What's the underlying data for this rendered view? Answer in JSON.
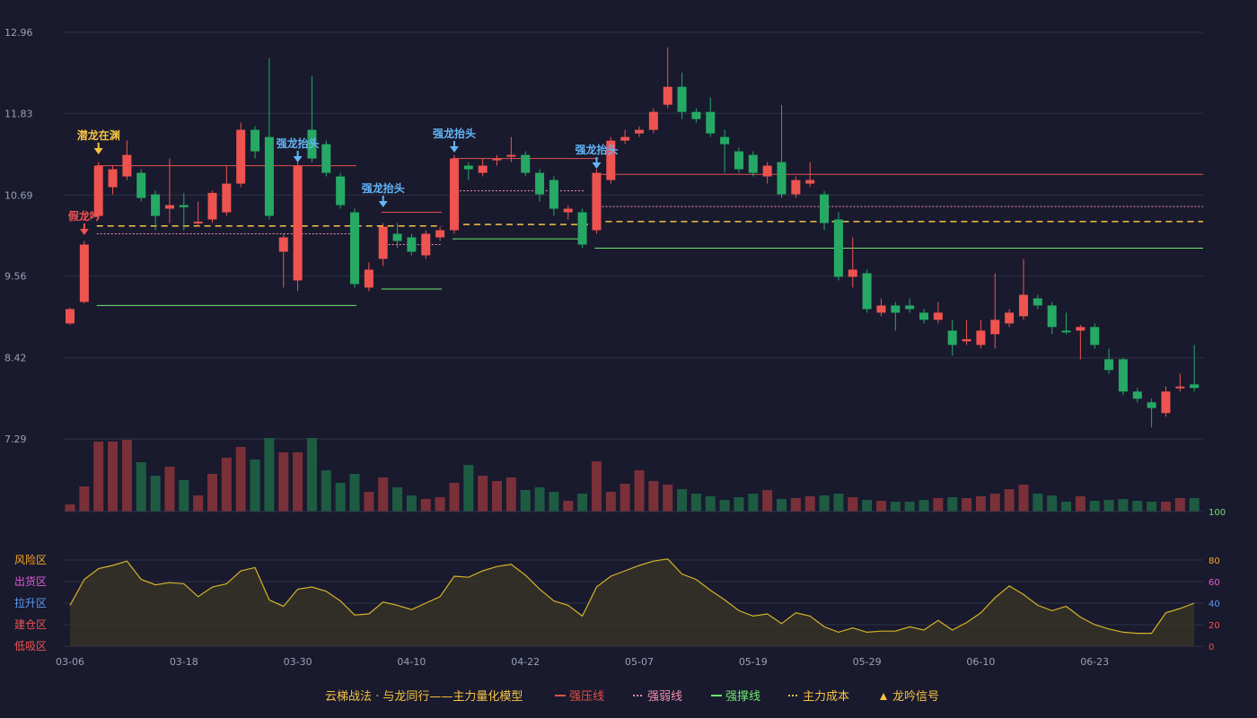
{
  "chart_data": {
    "type": "candlestick",
    "price_axis": {
      "ticks": [
        "12.96",
        "11.83",
        "10.69",
        "9.56",
        "8.42",
        "7.29"
      ],
      "range": [
        7.29,
        12.96
      ]
    },
    "date_ticks": [
      {
        "i": 0,
        "label": "03-06"
      },
      {
        "i": 8,
        "label": "03-18"
      },
      {
        "i": 16,
        "label": "03-30"
      },
      {
        "i": 24,
        "label": "04-10"
      },
      {
        "i": 32,
        "label": "04-22"
      },
      {
        "i": 40,
        "label": "05-07"
      },
      {
        "i": 48,
        "label": "05-19"
      },
      {
        "i": 56,
        "label": "05-29"
      },
      {
        "i": 64,
        "label": "06-10"
      },
      {
        "i": 72,
        "label": "06-23"
      }
    ],
    "candles": [
      [
        8.9,
        9.1,
        9.12,
        8.88
      ],
      [
        9.2,
        10.0,
        10.05,
        9.18
      ],
      [
        10.4,
        11.1,
        11.15,
        10.35
      ],
      [
        10.8,
        11.05,
        11.1,
        10.7
      ],
      [
        10.95,
        11.25,
        11.45,
        10.9
      ],
      [
        11.0,
        10.65,
        11.05,
        10.6
      ],
      [
        10.7,
        10.4,
        10.75,
        10.2
      ],
      [
        10.5,
        10.55,
        11.2,
        10.3
      ],
      [
        10.55,
        10.52,
        10.72,
        10.2
      ],
      [
        10.3,
        10.32,
        10.6,
        10.25
      ],
      [
        10.35,
        10.72,
        10.75,
        10.3
      ],
      [
        10.45,
        10.85,
        11.1,
        10.4
      ],
      [
        10.85,
        11.6,
        11.7,
        10.8
      ],
      [
        11.6,
        11.3,
        11.65,
        11.2
      ],
      [
        11.5,
        10.4,
        12.6,
        10.35
      ],
      [
        9.9,
        10.1,
        10.15,
        9.4
      ],
      [
        9.5,
        11.1,
        11.15,
        9.35
      ],
      [
        11.6,
        11.2,
        12.35,
        11.15
      ],
      [
        11.4,
        11.0,
        11.45,
        10.95
      ],
      [
        10.95,
        10.55,
        11.0,
        10.5
      ],
      [
        10.45,
        9.45,
        10.5,
        9.4
      ],
      [
        9.4,
        9.65,
        9.75,
        9.35
      ],
      [
        9.8,
        10.25,
        10.3,
        9.7
      ],
      [
        10.15,
        10.05,
        10.3,
        9.95
      ],
      [
        10.1,
        9.9,
        10.15,
        9.85
      ],
      [
        9.85,
        10.15,
        10.2,
        9.8
      ],
      [
        10.1,
        10.2,
        10.25,
        10.05
      ],
      [
        10.2,
        11.2,
        11.25,
        10.15
      ],
      [
        11.1,
        11.05,
        11.15,
        10.9
      ],
      [
        11.0,
        11.1,
        11.2,
        10.95
      ],
      [
        11.2,
        11.2,
        11.25,
        11.1
      ],
      [
        11.25,
        11.25,
        11.5,
        11.15
      ],
      [
        11.25,
        11.0,
        11.3,
        10.95
      ],
      [
        11.0,
        10.7,
        11.05,
        10.6
      ],
      [
        10.9,
        10.5,
        10.95,
        10.4
      ],
      [
        10.45,
        10.5,
        10.55,
        10.35
      ],
      [
        10.45,
        10.0,
        10.5,
        9.95
      ],
      [
        10.2,
        11.0,
        11.05,
        10.15
      ],
      [
        10.9,
        11.45,
        11.5,
        10.85
      ],
      [
        11.45,
        11.5,
        11.6,
        11.4
      ],
      [
        11.55,
        11.6,
        11.65,
        11.5
      ],
      [
        11.6,
        11.85,
        11.9,
        11.55
      ],
      [
        11.95,
        12.2,
        12.75,
        11.9
      ],
      [
        12.2,
        11.85,
        12.4,
        11.75
      ],
      [
        11.85,
        11.75,
        11.9,
        11.7
      ],
      [
        11.85,
        11.55,
        12.05,
        11.5
      ],
      [
        11.5,
        11.4,
        11.6,
        11.0
      ],
      [
        11.3,
        11.05,
        11.35,
        11.0
      ],
      [
        11.25,
        11.0,
        11.3,
        10.95
      ],
      [
        10.95,
        11.1,
        11.15,
        10.85
      ],
      [
        11.15,
        10.7,
        11.95,
        10.65
      ],
      [
        10.7,
        10.9,
        10.95,
        10.65
      ],
      [
        10.85,
        10.9,
        11.15,
        10.8
      ],
      [
        10.7,
        10.3,
        10.75,
        10.2
      ],
      [
        10.35,
        9.55,
        10.45,
        9.5
      ],
      [
        9.55,
        9.65,
        10.1,
        9.4
      ],
      [
        9.6,
        9.1,
        9.65,
        9.05
      ],
      [
        9.05,
        9.15,
        9.25,
        9.0
      ],
      [
        9.15,
        9.05,
        9.2,
        8.8
      ],
      [
        9.15,
        9.1,
        9.25,
        9.05
      ],
      [
        9.05,
        8.95,
        9.1,
        8.9
      ],
      [
        8.95,
        9.05,
        9.2,
        8.9
      ],
      [
        8.8,
        8.6,
        8.95,
        8.45
      ],
      [
        8.65,
        8.68,
        8.95,
        8.6
      ],
      [
        8.6,
        8.8,
        8.95,
        8.55
      ],
      [
        8.75,
        8.95,
        9.6,
        8.55
      ],
      [
        8.9,
        9.05,
        9.1,
        8.85
      ],
      [
        9.0,
        9.3,
        9.8,
        8.95
      ],
      [
        9.25,
        9.15,
        9.3,
        9.1
      ],
      [
        9.15,
        8.85,
        9.2,
        8.75
      ],
      [
        8.8,
        8.78,
        9.05,
        8.75
      ],
      [
        8.8,
        8.85,
        8.88,
        8.4
      ],
      [
        8.85,
        8.6,
        8.9,
        8.55
      ],
      [
        8.4,
        8.25,
        8.55,
        8.2
      ],
      [
        8.4,
        7.95,
        8.42,
        7.9
      ],
      [
        7.95,
        7.85,
        8.0,
        7.8
      ],
      [
        7.8,
        7.72,
        7.85,
        7.45
      ],
      [
        7.65,
        7.95,
        8.02,
        7.6
      ],
      [
        8.0,
        8.02,
        8.2,
        7.95
      ],
      [
        8.05,
        8.0,
        8.6,
        7.95
      ]
    ],
    "volume": [
      8,
      28,
      78,
      78,
      80,
      55,
      40,
      50,
      35,
      18,
      42,
      60,
      72,
      58,
      82,
      66,
      66,
      82,
      46,
      32,
      42,
      22,
      38,
      27,
      18,
      14,
      16,
      32,
      52,
      40,
      34,
      38,
      24,
      27,
      22,
      12,
      20,
      56,
      22,
      31,
      46,
      34,
      30,
      25,
      20,
      17,
      13,
      16,
      20,
      24,
      14,
      15,
      17,
      18,
      20,
      16,
      13,
      12,
      11,
      11,
      13,
      15,
      16,
      15,
      17,
      20,
      25,
      30,
      20,
      18,
      11,
      17,
      12,
      13,
      14,
      12,
      11,
      11,
      15,
      15
    ],
    "indicator": [
      38,
      62,
      72,
      75,
      79,
      62,
      57,
      59,
      58,
      46,
      55,
      58,
      70,
      73,
      43,
      37,
      53,
      55,
      51,
      42,
      29,
      30,
      41,
      38,
      34,
      40,
      46,
      65,
      64,
      70,
      74,
      76,
      66,
      53,
      42,
      38,
      28,
      55,
      65,
      70,
      75,
      79,
      81,
      67,
      62,
      52,
      43,
      33,
      28,
      30,
      21,
      31,
      28,
      18,
      13,
      17,
      13,
      14,
      14,
      18,
      15,
      24,
      15,
      22,
      31,
      45,
      56,
      48,
      38,
      33,
      37,
      27,
      20,
      16,
      13,
      12,
      12,
      31,
      35,
      40
    ],
    "indicator_axis": {
      "ticks": [
        "100",
        "80",
        "60",
        "40",
        "20",
        "0"
      ],
      "range": [
        0,
        100
      ]
    },
    "zones": [
      "风险区",
      "出货区",
      "拉升区",
      "建仓区",
      "低吸区"
    ],
    "level_lines": [
      {
        "kind": "strong_pressure",
        "from": 2,
        "to": 20,
        "y": 11.1
      },
      {
        "kind": "strong_weak",
        "from": 2,
        "to": 20,
        "y": 10.15
      },
      {
        "kind": "support",
        "from": 2,
        "to": 20,
        "y": 9.15
      },
      {
        "kind": "cost",
        "from": 2,
        "to": 26,
        "y": 10.26
      },
      {
        "kind": "strong_pressure",
        "from": 22,
        "to": 26,
        "y": 10.45
      },
      {
        "kind": "strong_weak",
        "from": 22,
        "to": 26,
        "y": 10.0
      },
      {
        "kind": "support",
        "from": 22,
        "to": 26,
        "y": 9.38
      },
      {
        "kind": "strong_pressure",
        "from": 27,
        "to": 37,
        "y": 11.2
      },
      {
        "kind": "strong_weak",
        "from": 27,
        "to": 36,
        "y": 10.75
      },
      {
        "kind": "support",
        "from": 27,
        "to": 36,
        "y": 10.08
      },
      {
        "kind": "cost",
        "from": 27,
        "to": 37,
        "y": 10.28
      },
      {
        "kind": "strong_pressure",
        "from": 37,
        "to": 79,
        "y": 10.98
      },
      {
        "kind": "strong_weak",
        "from": 37,
        "to": 79,
        "y": 10.53
      },
      {
        "kind": "support",
        "from": 37,
        "to": 79,
        "y": 9.95
      },
      {
        "kind": "cost",
        "from": 37,
        "to": 79,
        "y": 10.32
      }
    ],
    "signals": [
      {
        "i": 1,
        "label": "假龙吟",
        "color": "#ef5350",
        "textY": 245
      },
      {
        "i": 2,
        "label": "潜龙在渊",
        "color": "#f6c343",
        "textY": 155
      },
      {
        "i": 16,
        "label": "强龙抬头",
        "color": "#64b5f6",
        "textY": 164
      },
      {
        "i": 22,
        "label": "强龙抬头",
        "color": "#64b5f6",
        "textY": 214
      },
      {
        "i": 27,
        "label": "强龙抬头",
        "color": "#64b5f6",
        "textY": 153
      },
      {
        "i": 37,
        "label": "强龙抬头",
        "color": "#64b5f6",
        "textY": 171
      }
    ],
    "legend": {
      "title": "云梯战法 · 与龙同行——主力量化模型",
      "items": [
        {
          "kind": "strong_pressure",
          "label": "强压线"
        },
        {
          "kind": "strong_weak",
          "label": "强弱线"
        },
        {
          "kind": "support",
          "label": "强撑线"
        },
        {
          "kind": "cost",
          "label": "主力成本"
        },
        {
          "kind": "signal",
          "label": "龙吟信号"
        }
      ]
    },
    "colors": {
      "up": "#ef5350",
      "down": "#26a965",
      "grid": "#2e3145",
      "strong_pressure": "#e0504a",
      "strong_weak": "#f48fb1",
      "support": "#6ee86e",
      "cost": "#f6c343",
      "indicator_line": "#d4b32a",
      "zone_risk": "#f5a623",
      "zone_ship": "#e05cd4",
      "zone_pull": "#5b9bf5",
      "zone_build": "#ef5350",
      "zone_low": "#ef5350"
    }
  }
}
